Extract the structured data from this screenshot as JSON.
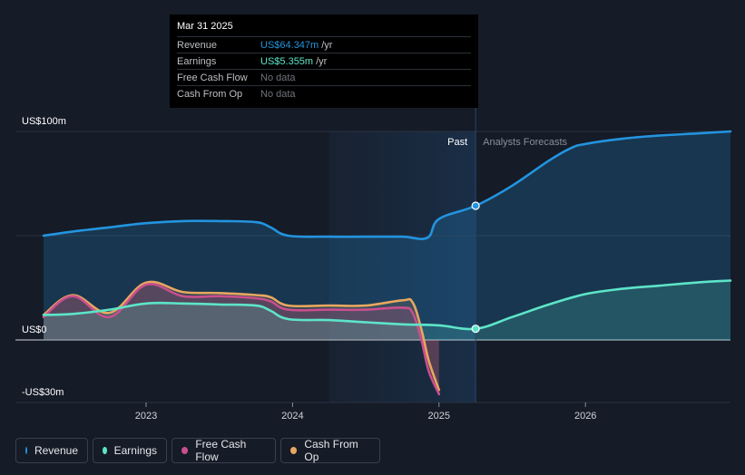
{
  "tooltip": {
    "date": "Mar 31 2025",
    "rows": [
      {
        "label": "Revenue",
        "value": "US$64.347m",
        "unit": "/yr",
        "color": "#2394df"
      },
      {
        "label": "Earnings",
        "value": "US$5.355m",
        "unit": "/yr",
        "color": "#5de5c8"
      },
      {
        "label": "Free Cash Flow",
        "value": "No data",
        "unit": "",
        "color": "#6f737b"
      },
      {
        "label": "Cash From Op",
        "value": "No data",
        "unit": "",
        "color": "#6f737b"
      }
    ]
  },
  "legend": [
    {
      "label": "Revenue",
      "color": "#2394df"
    },
    {
      "label": "Earnings",
      "color": "#5de5c8"
    },
    {
      "label": "Free Cash Flow",
      "color": "#c94f8e"
    },
    {
      "label": "Cash From Op",
      "color": "#e7a75f"
    }
  ],
  "chart_data": {
    "type": "area",
    "y_tick_labels": [
      "US$100m",
      "US$0",
      "-US$30m"
    ],
    "ylim": [
      -30,
      100
    ],
    "xlim": [
      2022.3,
      2026.99
    ],
    "x_ticks": [
      2023,
      2024,
      2025,
      2026
    ],
    "x_tick_labels": [
      "2023",
      "2024",
      "2025",
      "2026"
    ],
    "past_label": "Past",
    "forecast_label": "Analysts Forecasts",
    "past_end": 2025.25,
    "highlight_start": 2024.25,
    "grid": true,
    "series": [
      {
        "name": "Revenue",
        "color": "#2394df",
        "points": [
          [
            2022.3,
            50
          ],
          [
            2022.5,
            52
          ],
          [
            2022.75,
            54
          ],
          [
            2023.0,
            56
          ],
          [
            2023.25,
            57
          ],
          [
            2023.5,
            57
          ],
          [
            2023.75,
            56.5
          ],
          [
            2023.85,
            54
          ],
          [
            2023.97,
            50
          ],
          [
            2024.25,
            49.5
          ],
          [
            2024.5,
            49.5
          ],
          [
            2024.75,
            49.5
          ],
          [
            2024.92,
            49
          ],
          [
            2025.0,
            58
          ],
          [
            2025.25,
            64.347
          ],
          [
            2025.5,
            74
          ],
          [
            2025.75,
            86
          ],
          [
            2025.9,
            92
          ],
          [
            2026.0,
            94
          ],
          [
            2026.25,
            96.5
          ],
          [
            2026.5,
            98
          ],
          [
            2026.75,
            99
          ],
          [
            2026.99,
            100
          ]
        ]
      },
      {
        "name": "Earnings",
        "color": "#5de5c8",
        "points": [
          [
            2022.3,
            12
          ],
          [
            2022.5,
            12.5
          ],
          [
            2022.75,
            14.5
          ],
          [
            2023.0,
            17.5
          ],
          [
            2023.25,
            17.5
          ],
          [
            2023.5,
            17
          ],
          [
            2023.75,
            16.5
          ],
          [
            2023.85,
            14
          ],
          [
            2023.97,
            10
          ],
          [
            2024.25,
            9.5
          ],
          [
            2024.5,
            8.5
          ],
          [
            2024.75,
            7.5
          ],
          [
            2025.0,
            7
          ],
          [
            2025.25,
            5.355
          ],
          [
            2025.5,
            11
          ],
          [
            2025.75,
            17
          ],
          [
            2026.0,
            22
          ],
          [
            2026.25,
            24.5
          ],
          [
            2026.5,
            26
          ],
          [
            2026.75,
            27.5
          ],
          [
            2026.99,
            28.5
          ]
        ]
      },
      {
        "name": "Free Cash Flow",
        "color": "#c94f8e",
        "points": [
          [
            2022.3,
            11
          ],
          [
            2022.5,
            21
          ],
          [
            2022.75,
            11
          ],
          [
            2023.0,
            26.5
          ],
          [
            2023.25,
            21
          ],
          [
            2023.5,
            21
          ],
          [
            2023.75,
            20
          ],
          [
            2023.85,
            18.5
          ],
          [
            2023.97,
            14.5
          ],
          [
            2024.25,
            14.5
          ],
          [
            2024.5,
            14.5
          ],
          [
            2024.75,
            15.5
          ],
          [
            2024.82,
            13
          ],
          [
            2024.88,
            0
          ],
          [
            2024.93,
            -15
          ],
          [
            2025.0,
            -26
          ]
        ]
      },
      {
        "name": "Cash From Op",
        "color": "#e7a75f",
        "points": [
          [
            2022.3,
            12
          ],
          [
            2022.5,
            21.5
          ],
          [
            2022.75,
            13
          ],
          [
            2023.0,
            27.5
          ],
          [
            2023.25,
            23
          ],
          [
            2023.5,
            22.5
          ],
          [
            2023.75,
            21.5
          ],
          [
            2023.85,
            20.5
          ],
          [
            2023.97,
            16.5
          ],
          [
            2024.25,
            16.5
          ],
          [
            2024.5,
            16.5
          ],
          [
            2024.75,
            19
          ],
          [
            2024.82,
            18
          ],
          [
            2024.88,
            5
          ],
          [
            2024.93,
            -10
          ],
          [
            2025.0,
            -24
          ]
        ]
      }
    ]
  }
}
